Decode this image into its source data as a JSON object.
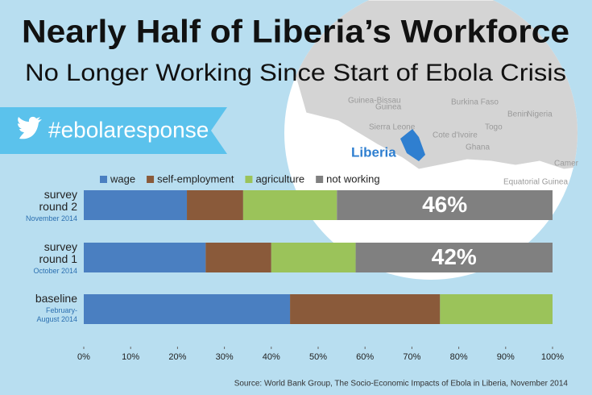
{
  "title": "Nearly Half of Liberia’s Workforce",
  "subtitle": "No Longer Working Since Start of Ebola Crisis",
  "hashtag": "#ebolaresponse",
  "map": {
    "highlight": "Liberia",
    "labels": [
      "Guinea-Bissau",
      "Guinea",
      "Burkina Faso",
      "Benin",
      "Nigeria",
      "Sierra Leone",
      "Cote d'Ivoire",
      "Togo",
      "Ghana",
      "Equatorial Guinea",
      "Camer"
    ]
  },
  "source": "Source: World Bank Group, The Socio-Economic Impacts of Ebola in Liberia, November 2014",
  "chart_data": {
    "type": "stacked-barh",
    "categories": [
      "survey round 2",
      "survey round 1",
      "baseline"
    ],
    "category_notes": [
      "November 2014",
      "October 2014",
      "February-August 2014"
    ],
    "series": [
      {
        "name": "wage",
        "color": "#4a7fc1",
        "values": [
          22,
          26,
          44
        ]
      },
      {
        "name": "self-employment",
        "color": "#8a5a3a",
        "values": [
          12,
          14,
          32
        ]
      },
      {
        "name": "agriculture",
        "color": "#9bc35a",
        "values": [
          20,
          18,
          24
        ]
      },
      {
        "name": "not working",
        "color": "#808080",
        "values": [
          46,
          42,
          0
        ],
        "value_labels": [
          "46%",
          "42%",
          null
        ]
      }
    ],
    "xlim": [
      0,
      100
    ],
    "xticks": [
      {
        "value": 0,
        "label": "0%"
      },
      {
        "value": 10,
        "label": "10%"
      },
      {
        "value": 20,
        "label": "20%"
      },
      {
        "value": 30,
        "label": "30%"
      },
      {
        "value": 40,
        "label": "40%"
      },
      {
        "value": 50,
        "label": "50%"
      },
      {
        "value": 60,
        "label": "60%"
      },
      {
        "value": 70,
        "label": "70%"
      },
      {
        "value": 80,
        "label": "80%"
      },
      {
        "value": 90,
        "label": "90%"
      },
      {
        "value": 100,
        "label": "100%"
      }
    ],
    "legend": "top"
  }
}
